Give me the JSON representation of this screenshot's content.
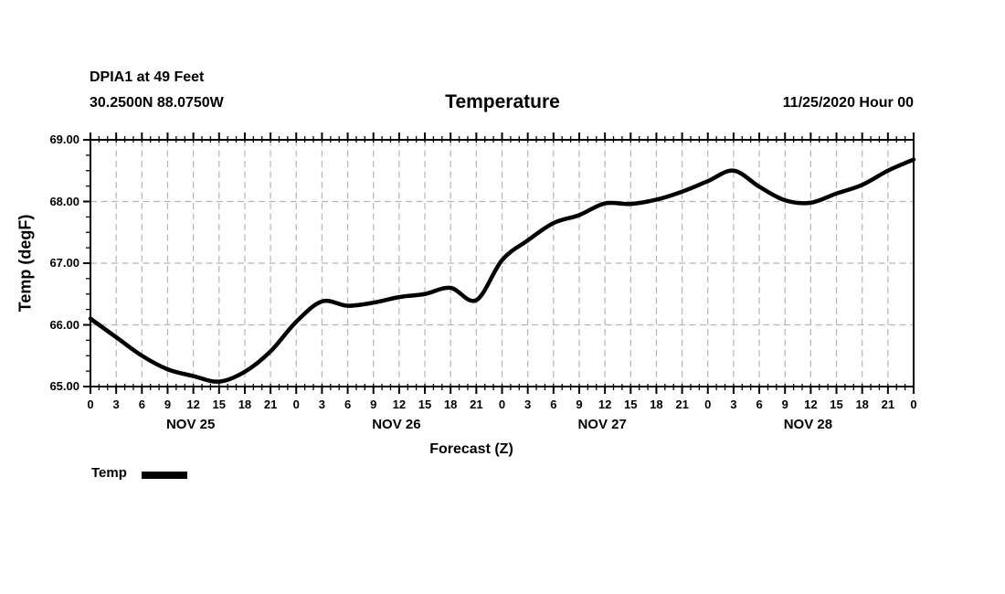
{
  "header": {
    "station_line1": "DPIA1 at 49 Feet",
    "station_line2": "30.2500N 88.0750W",
    "title": "Temperature",
    "datetime": "11/25/2020 Hour 00"
  },
  "legend": {
    "label": "Temp"
  },
  "colors": {
    "line": "#000000",
    "grid": "#b5b5b5",
    "text": "#000000",
    "background": "#ffffff"
  },
  "chart_data": {
    "type": "line",
    "title": "Temperature",
    "xlabel": "Forecast (Z)",
    "ylabel": "Temp (degF)",
    "xlim": [
      0,
      96
    ],
    "ylim": [
      65,
      69
    ],
    "grid": true,
    "legend_position": "bottom-left",
    "x_tick_hours": [
      0,
      3,
      6,
      9,
      12,
      15,
      18,
      21,
      24,
      27,
      30,
      33,
      36,
      39,
      42,
      45,
      48,
      51,
      54,
      57,
      60,
      63,
      66,
      69,
      72,
      75,
      78,
      81,
      84,
      87,
      90,
      93,
      96
    ],
    "x_tick_labels": [
      "0",
      "3",
      "6",
      "9",
      "12",
      "15",
      "18",
      "21",
      "0",
      "3",
      "6",
      "9",
      "12",
      "15",
      "18",
      "21",
      "0",
      "3",
      "6",
      "9",
      "12",
      "15",
      "18",
      "21",
      "0",
      "3",
      "6",
      "9",
      "12",
      "15",
      "18",
      "21",
      "0"
    ],
    "x_minor_step_hours": 1,
    "y_ticks": [
      65,
      66,
      67,
      68,
      69
    ],
    "y_tick_labels": [
      "65.00",
      "66.00",
      "67.00",
      "68.00",
      "69.00"
    ],
    "y_minor_step": 0.25,
    "day_labels": [
      {
        "label": "NOV 25",
        "center_hour": 12
      },
      {
        "label": "NOV 26",
        "center_hour": 36
      },
      {
        "label": "NOV 27",
        "center_hour": 60
      },
      {
        "label": "NOV 28",
        "center_hour": 84
      }
    ],
    "series": [
      {
        "name": "Temp",
        "x": [
          0,
          3,
          6,
          9,
          12,
          15,
          18,
          21,
          24,
          27,
          30,
          33,
          36,
          39,
          42,
          45,
          48,
          51,
          54,
          57,
          60,
          63,
          66,
          69,
          72,
          75,
          78,
          81,
          84,
          87,
          90,
          93,
          96
        ],
        "values": [
          66.1,
          65.8,
          65.5,
          65.28,
          65.17,
          65.08,
          65.24,
          65.57,
          66.05,
          66.38,
          66.31,
          66.36,
          66.45,
          66.5,
          66.6,
          66.4,
          67.05,
          67.37,
          67.65,
          67.78,
          67.97,
          67.96,
          68.03,
          68.16,
          68.33,
          68.5,
          68.24,
          68.02,
          67.98,
          68.13,
          68.27,
          68.5,
          68.68
        ]
      }
    ]
  }
}
